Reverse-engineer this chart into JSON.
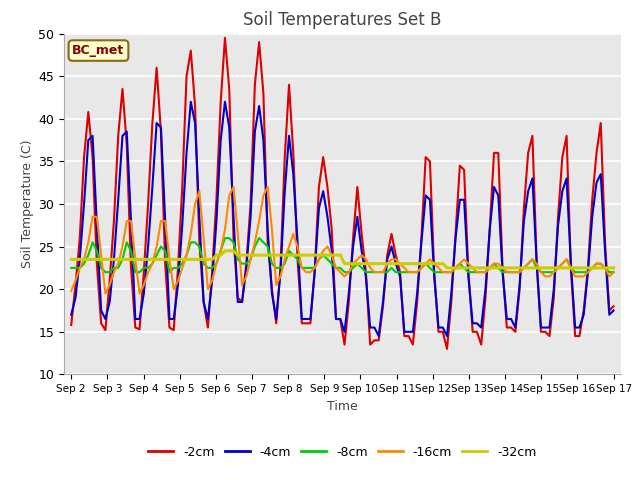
{
  "title": "Soil Temperatures Set B",
  "xlabel": "Time",
  "ylabel": "Soil Temperature (C)",
  "ylim": [
    10,
    50
  ],
  "plot_bg": "#e8e8e8",
  "fig_bg": "#ffffff",
  "annotation": "BC_met",
  "ann_color": "#8b0000",
  "ann_bg": "#ffffcc",
  "ann_border": "#8b6914",
  "legend_labels": [
    "-2cm",
    "-4cm",
    "-8cm",
    "-16cm",
    "-32cm"
  ],
  "line_colors": [
    "#dd0000",
    "#0000cc",
    "#00cc00",
    "#ff8800",
    "#cccc00"
  ],
  "line_widths": [
    1.5,
    1.5,
    1.5,
    1.5,
    2.2
  ],
  "x_tick_labels": [
    "Sep 2",
    "Sep 3",
    "Sep 4",
    "Sep 5",
    "Sep 6",
    "Sep 7",
    "Sep 8",
    "Sep 9",
    "Sep 10",
    "Sep 11",
    "Sep 12",
    "Sep 13",
    "Sep 14",
    "Sep 15",
    "Sep 16",
    "Sep 17"
  ],
  "data_2cm": [
    15.8,
    20.5,
    26.0,
    35.5,
    40.8,
    35.5,
    23.0,
    16.0,
    15.2,
    21.0,
    28.0,
    38.0,
    43.5,
    37.0,
    22.5,
    15.5,
    15.3,
    22.0,
    30.0,
    39.5,
    46.0,
    38.5,
    23.0,
    15.5,
    15.2,
    22.5,
    32.0,
    45.0,
    48.0,
    41.5,
    25.5,
    18.5,
    15.5,
    22.0,
    30.5,
    42.0,
    49.5,
    43.5,
    26.0,
    19.0,
    18.5,
    23.0,
    30.0,
    44.0,
    49.0,
    43.0,
    25.5,
    20.0,
    16.0,
    22.5,
    35.5,
    44.0,
    36.0,
    23.5,
    16.0,
    16.0,
    16.0,
    22.0,
    32.0,
    35.5,
    32.0,
    27.0,
    16.5,
    16.5,
    13.5,
    18.5,
    26.0,
    32.0,
    26.5,
    22.0,
    13.5,
    14.0,
    14.0,
    18.0,
    24.0,
    26.5,
    24.0,
    22.0,
    14.5,
    14.5,
    13.5,
    18.5,
    26.0,
    35.5,
    35.0,
    22.0,
    15.0,
    15.0,
    13.0,
    18.5,
    26.5,
    34.5,
    34.0,
    22.0,
    15.0,
    15.0,
    13.5,
    19.0,
    27.0,
    36.0,
    36.0,
    22.5,
    15.5,
    15.5,
    15.0,
    20.0,
    29.5,
    36.0,
    38.0,
    23.0,
    15.0,
    15.0,
    14.5,
    19.0,
    28.5,
    35.5,
    38.0,
    22.5,
    14.5,
    14.5,
    17.5,
    22.5,
    30.5,
    36.0,
    39.5,
    25.5,
    17.5,
    18.0
  ],
  "data_4cm": [
    17.0,
    19.0,
    23.5,
    30.0,
    37.5,
    38.0,
    27.5,
    17.5,
    16.5,
    18.5,
    23.5,
    30.5,
    38.0,
    38.5,
    28.0,
    16.5,
    16.5,
    19.5,
    25.0,
    32.0,
    39.5,
    39.0,
    28.0,
    16.5,
    16.5,
    20.5,
    27.5,
    36.0,
    42.0,
    39.5,
    28.5,
    18.5,
    16.5,
    21.0,
    28.0,
    37.5,
    42.0,
    39.0,
    28.5,
    18.5,
    18.5,
    22.5,
    28.5,
    38.5,
    41.5,
    37.5,
    27.0,
    19.5,
    16.5,
    22.0,
    31.5,
    38.0,
    33.5,
    25.5,
    16.5,
    16.5,
    16.5,
    22.0,
    29.5,
    31.5,
    28.5,
    24.5,
    16.5,
    16.5,
    15.0,
    19.5,
    25.0,
    28.5,
    24.5,
    21.5,
    15.5,
    15.5,
    14.5,
    18.5,
    23.5,
    25.0,
    23.0,
    21.5,
    15.0,
    15.0,
    15.0,
    19.5,
    25.5,
    31.0,
    30.5,
    21.5,
    15.5,
    15.5,
    14.5,
    19.5,
    26.0,
    30.5,
    30.5,
    21.5,
    16.0,
    16.0,
    15.5,
    20.0,
    27.0,
    32.0,
    31.0,
    22.0,
    16.5,
    16.5,
    15.5,
    20.5,
    28.0,
    31.5,
    33.0,
    23.0,
    15.5,
    15.5,
    15.5,
    20.0,
    27.5,
    31.5,
    33.0,
    23.0,
    15.5,
    15.5,
    17.0,
    22.0,
    28.5,
    32.5,
    33.5,
    24.5,
    17.0,
    17.5
  ],
  "data_8cm": [
    22.5,
    22.5,
    22.5,
    23.0,
    24.0,
    25.5,
    24.5,
    22.5,
    22.0,
    22.0,
    22.5,
    22.5,
    23.5,
    25.5,
    24.5,
    22.0,
    22.0,
    22.5,
    22.5,
    23.0,
    24.0,
    25.0,
    24.5,
    22.0,
    22.5,
    22.5,
    23.0,
    24.0,
    25.5,
    25.5,
    25.0,
    23.0,
    22.5,
    22.5,
    23.0,
    24.5,
    26.0,
    26.0,
    25.5,
    23.5,
    23.0,
    23.0,
    23.5,
    25.0,
    26.0,
    25.5,
    25.0,
    23.0,
    22.5,
    22.5,
    23.0,
    24.5,
    24.0,
    23.5,
    22.5,
    22.5,
    22.5,
    22.5,
    23.5,
    24.0,
    23.5,
    23.0,
    22.5,
    22.5,
    22.0,
    22.0,
    22.5,
    23.0,
    22.5,
    22.0,
    22.0,
    22.0,
    22.0,
    22.0,
    22.0,
    22.5,
    22.0,
    22.0,
    22.0,
    22.0,
    22.0,
    22.0,
    22.5,
    23.0,
    22.5,
    22.0,
    22.0,
    22.0,
    22.0,
    22.0,
    22.5,
    23.0,
    22.5,
    22.0,
    22.0,
    22.0,
    22.0,
    22.0,
    22.5,
    23.0,
    22.5,
    22.0,
    22.0,
    22.0,
    22.0,
    22.0,
    22.5,
    23.0,
    23.5,
    22.5,
    22.0,
    22.0,
    22.0,
    22.0,
    22.5,
    23.0,
    23.5,
    22.5,
    22.0,
    22.0,
    22.0,
    22.0,
    22.5,
    23.0,
    23.0,
    22.5,
    22.0,
    22.0
  ],
  "data_16cm": [
    19.8,
    21.0,
    22.5,
    23.5,
    25.5,
    28.5,
    28.5,
    24.0,
    19.5,
    20.5,
    22.0,
    23.0,
    25.0,
    28.0,
    28.0,
    23.5,
    19.5,
    20.5,
    22.0,
    23.0,
    25.0,
    28.0,
    28.0,
    23.5,
    20.0,
    21.0,
    22.5,
    24.0,
    26.5,
    30.0,
    31.5,
    26.0,
    20.0,
    21.0,
    23.0,
    24.5,
    27.0,
    31.0,
    32.0,
    26.5,
    20.5,
    21.5,
    23.5,
    25.5,
    28.0,
    31.0,
    32.0,
    27.0,
    20.5,
    21.5,
    23.5,
    25.0,
    26.5,
    25.0,
    22.5,
    22.0,
    22.0,
    22.5,
    23.5,
    24.5,
    25.0,
    24.0,
    22.5,
    22.0,
    21.5,
    22.0,
    23.0,
    23.5,
    24.0,
    23.5,
    22.5,
    22.0,
    22.0,
    22.0,
    23.0,
    23.5,
    23.5,
    23.0,
    22.5,
    22.0,
    22.0,
    22.0,
    22.5,
    23.0,
    23.5,
    23.0,
    22.5,
    22.0,
    22.0,
    22.0,
    22.5,
    23.0,
    23.5,
    23.0,
    22.5,
    22.0,
    22.0,
    22.0,
    22.5,
    23.0,
    23.0,
    22.5,
    22.0,
    22.0,
    22.0,
    22.0,
    22.5,
    23.0,
    23.5,
    23.0,
    22.0,
    21.5,
    21.5,
    22.0,
    22.5,
    23.0,
    23.5,
    22.5,
    21.5,
    21.5,
    21.5,
    22.0,
    22.5,
    23.0,
    23.0,
    22.5,
    21.5,
    22.0
  ],
  "data_32cm": [
    23.5,
    23.5,
    23.5,
    23.5,
    23.5,
    23.5,
    23.5,
    23.5,
    23.5,
    23.5,
    23.5,
    23.5,
    23.5,
    23.5,
    23.5,
    23.5,
    23.5,
    23.5,
    23.5,
    23.5,
    23.5,
    23.5,
    23.5,
    23.5,
    23.5,
    23.5,
    23.5,
    23.5,
    23.5,
    23.5,
    23.5,
    23.5,
    23.5,
    23.5,
    24.0,
    24.0,
    24.5,
    24.5,
    24.5,
    24.0,
    24.0,
    24.0,
    24.0,
    24.0,
    24.0,
    24.0,
    24.0,
    24.0,
    24.0,
    24.0,
    24.0,
    24.0,
    24.0,
    24.0,
    24.0,
    24.0,
    24.0,
    24.0,
    24.0,
    24.0,
    24.0,
    24.0,
    24.0,
    24.0,
    23.0,
    23.0,
    23.0,
    23.0,
    23.0,
    23.0,
    23.0,
    23.0,
    23.0,
    23.0,
    23.0,
    23.0,
    23.0,
    23.0,
    23.0,
    23.0,
    23.0,
    23.0,
    23.0,
    23.0,
    23.0,
    23.0,
    23.0,
    23.0,
    22.5,
    22.5,
    22.5,
    22.5,
    22.5,
    22.5,
    22.5,
    22.5,
    22.5,
    22.5,
    22.5,
    22.5,
    22.5,
    22.5,
    22.5,
    22.5,
    22.5,
    22.5,
    22.5,
    22.5,
    22.5,
    22.5,
    22.5,
    22.5,
    22.5,
    22.5,
    22.5,
    22.5,
    22.5,
    22.5,
    22.5,
    22.5,
    22.5,
    22.5,
    22.5,
    22.5,
    22.5,
    22.5,
    22.5,
    22.5
  ]
}
